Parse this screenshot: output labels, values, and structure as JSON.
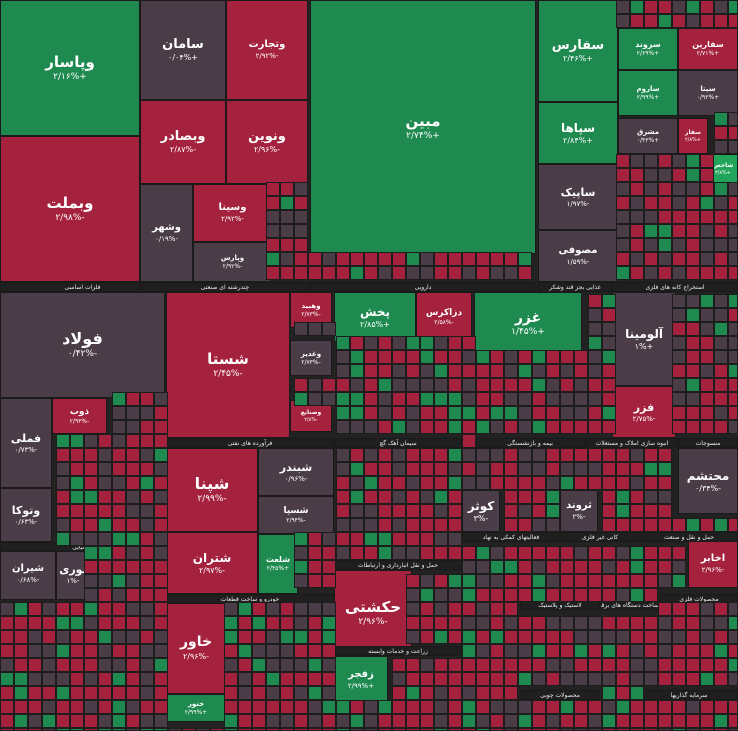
{
  "chart_data": {
    "type": "treemap",
    "title": "",
    "colors": {
      "up": "#1e8a50",
      "up_strong": "#20a55a",
      "down": "#a4223d",
      "neutral": "#4a3d48",
      "sector_label_bg": "#1f1f1f"
    },
    "sectors": [
      {
        "name": "فلزات اساسی"
      },
      {
        "name": "خودرو و ساخت قطعات"
      },
      {
        "name": "شیمیایی"
      },
      {
        "name": "فرآورده های نفتی"
      },
      {
        "name": "دارویی"
      },
      {
        "name": "چندرشته ای صنعتی"
      },
      {
        "name": "غذایی بجز قند وشکر"
      },
      {
        "name": "استخراج کانه های فلزی"
      },
      {
        "name": "بیمه و بازنشستگی"
      },
      {
        "name": "سیمان آهک گچ"
      },
      {
        "name": "انبوه سازی املاک و مستغلات"
      },
      {
        "name": "منسوجات"
      },
      {
        "name": "کانی غیر فلزی"
      },
      {
        "name": "حمل و نقل انبارداری و ارتباطات"
      },
      {
        "name": "فعالیتهای کمکی به نهاد"
      },
      {
        "name": "حمل و نقل و صنعت"
      },
      {
        "name": "محصولات فلزی"
      },
      {
        "name": "زراعت و خدمات وابسته"
      },
      {
        "name": "لاستیک و پلاستیک"
      },
      {
        "name": "ساخت دستگاه های برقی"
      },
      {
        "name": "ماشین آلات"
      },
      {
        "name": "سرمایه گذاریها"
      },
      {
        "name": "سایر محصولات کانی"
      },
      {
        "name": "محصولات چوبی"
      }
    ],
    "tiles": [
      {
        "name": "وپاسار",
        "value": "+۲/۱۶%",
        "color": "up"
      },
      {
        "name": "وبملت",
        "value": "-۲/۹۸%",
        "color": "down"
      },
      {
        "name": "سامان",
        "value": "+۰/۰۴%",
        "color": "neutral"
      },
      {
        "name": "وتجارت",
        "value": "-۲/۹۲%",
        "color": "down"
      },
      {
        "name": "وبصادر",
        "value": "-۲/۸۷%",
        "color": "down"
      },
      {
        "name": "ونوین",
        "value": "-۲/۹۶%",
        "color": "down"
      },
      {
        "name": "وسینا",
        "value": "-۲/۹۲%",
        "color": "down"
      },
      {
        "name": "وشهر",
        "value": "-۰/۱۹%",
        "color": "neutral"
      },
      {
        "name": "وپارس",
        "value": "-۲/۹۲%",
        "color": "neutral"
      },
      {
        "name": "مبین",
        "value": "+۲/۷۴%",
        "color": "up"
      },
      {
        "name": "سفارس",
        "value": "+۲/۴۶%",
        "color": "up"
      },
      {
        "name": "سپاها",
        "value": "+۲/۸۴%",
        "color": "up"
      },
      {
        "name": "ساپیک",
        "value": "-۱/۹۷%",
        "color": "neutral"
      },
      {
        "name": "مصوفی",
        "value": "-۱/۵۹%",
        "color": "neutral"
      },
      {
        "name": "سروند",
        "value": "+۲/۶۹%",
        "color": "up"
      },
      {
        "name": "ساروم",
        "value": "+۲/۹۹%",
        "color": "up"
      },
      {
        "name": "مشرق",
        "value": "+۰/۴۳%",
        "color": "neutral"
      },
      {
        "name": "سفارین",
        "value": "+۲/۷۱%",
        "color": "down"
      },
      {
        "name": "سیتا",
        "value": "+۰/۹۲%",
        "color": "neutral"
      },
      {
        "name": "سفار",
        "value": "+۲/۸%",
        "color": "down"
      },
      {
        "name": "شاخص",
        "value": "+۳/۸%",
        "color": "up_strong"
      },
      {
        "name": "فولاد",
        "value": "-۰/۴۲%",
        "color": "neutral"
      },
      {
        "name": "شستا",
        "value": "-۲/۴۵%",
        "color": "down"
      },
      {
        "name": "وهبید",
        "value": "-۲/۷۳%",
        "color": "down"
      },
      {
        "name": "وغدیر",
        "value": "-۲/۷۳%",
        "color": "neutral"
      },
      {
        "name": "وصنایع",
        "value": "-۲/۸%",
        "color": "down"
      },
      {
        "name": "پخش",
        "value": "+۲/۸۵%",
        "color": "up"
      },
      {
        "name": "دزاکرس",
        "value": "-۲/۵۸%",
        "color": "down"
      },
      {
        "name": "غزر",
        "value": "+۱/۴۵%",
        "color": "up"
      },
      {
        "name": "آلومینا",
        "value": "+۱%",
        "color": "neutral"
      },
      {
        "name": "فزر",
        "value": "-۲/۷۵%",
        "color": "down"
      },
      {
        "name": "فملی",
        "value": "-۰/۷۳%",
        "color": "neutral"
      },
      {
        "name": "ذوب",
        "value": "-۲/۹۳%",
        "color": "down"
      },
      {
        "name": "وتوکا",
        "value": "-۰/۶۳%",
        "color": "neutral"
      },
      {
        "name": "شپنا",
        "value": "-۲/۹۹%",
        "color": "down"
      },
      {
        "name": "شبندر",
        "value": "-۰/۹۶%",
        "color": "neutral"
      },
      {
        "name": "شسپا",
        "value": "-۲/۹۴%",
        "color": "neutral"
      },
      {
        "name": "شتران",
        "value": "-۲/۹۷%",
        "color": "down"
      },
      {
        "name": "شلعت",
        "value": "+۲/۴۵%",
        "color": "up"
      },
      {
        "name": "محتشم",
        "value": "-۰/۳۴%",
        "color": "neutral"
      },
      {
        "name": "اخابر",
        "value": "-۲/۹۶%",
        "color": "down"
      },
      {
        "name": "حکشتی",
        "value": "-۲/۹۶%",
        "color": "down"
      },
      {
        "name": "خاور",
        "value": "-۲/۹۶%",
        "color": "down"
      },
      {
        "name": "کوثر",
        "value": "-۳%",
        "color": "neutral"
      },
      {
        "name": "ثروند",
        "value": "-۲%",
        "color": "neutral"
      },
      {
        "name": "شیران",
        "value": "-۰/۶۸%",
        "color": "neutral"
      },
      {
        "name": "نوری",
        "value": "-۱%",
        "color": "neutral"
      },
      {
        "name": "زفجر",
        "value": "+۲/۹۹%",
        "color": "up"
      },
      {
        "name": "خنور",
        "value": "+۲/۹۹%",
        "color": "up"
      }
    ]
  }
}
